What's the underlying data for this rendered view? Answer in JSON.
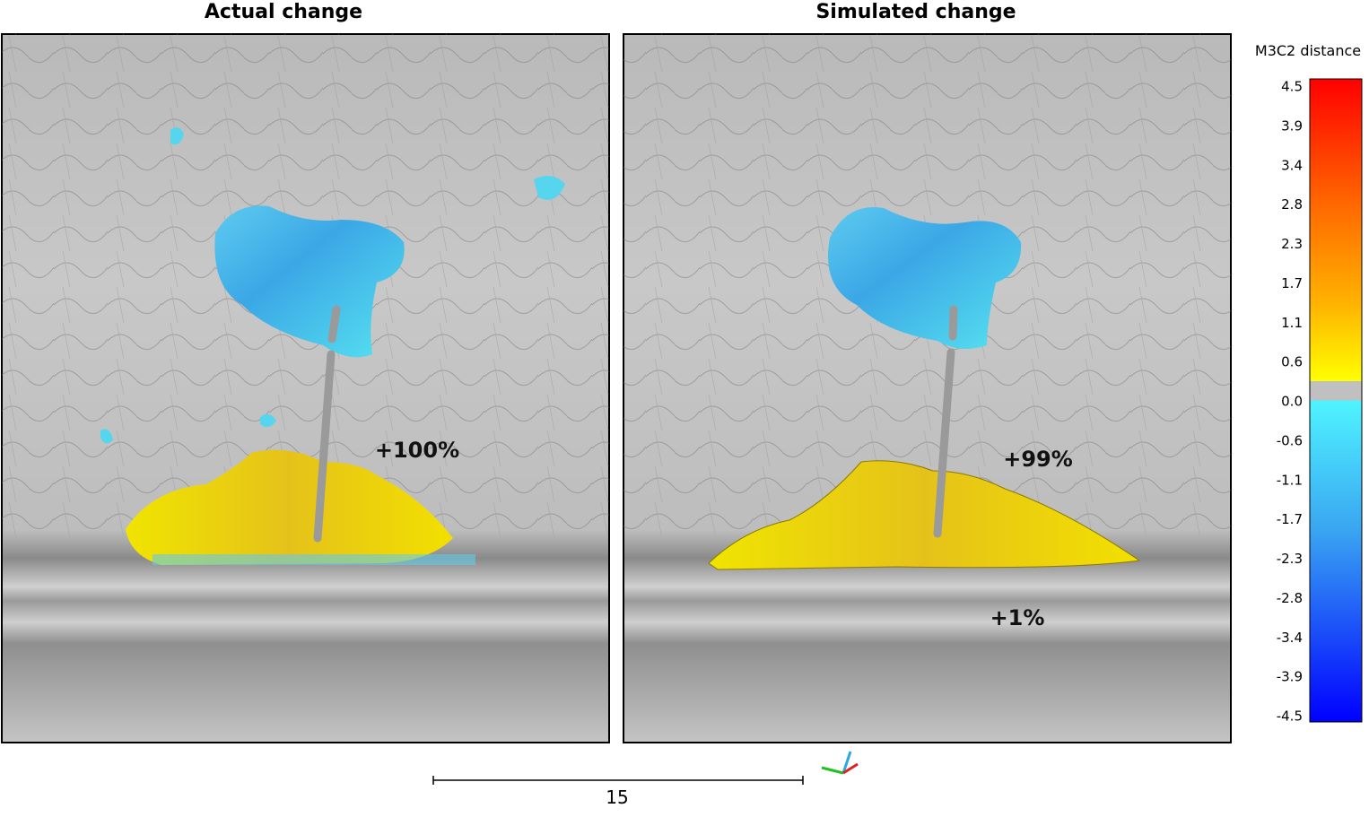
{
  "panels": [
    {
      "title": "Actual change",
      "annotations": [
        "+100%"
      ]
    },
    {
      "title": "Simulated change",
      "annotations": [
        "+99%",
        "+1%"
      ]
    }
  ],
  "colorbar": {
    "title": "M3C2 distance",
    "ticks": [
      "4.5",
      "3.9",
      "3.4",
      "2.8",
      "2.3",
      "1.7",
      "1.1",
      "0.6",
      "0.0",
      "-0.6",
      "-1.1",
      "-1.7",
      "-2.3",
      "-2.8",
      "-3.4",
      "-3.9",
      "-4.5"
    ]
  },
  "scale_bar": {
    "label": "15"
  }
}
